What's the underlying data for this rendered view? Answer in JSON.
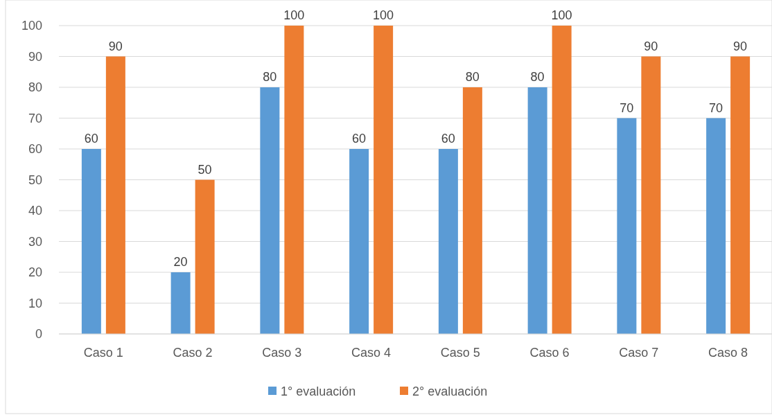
{
  "chart_data": {
    "type": "bar",
    "categories": [
      "Caso 1",
      "Caso 2",
      "Caso 3",
      "Caso 4",
      "Caso 5",
      "Caso 6",
      "Caso 7",
      "Caso 8"
    ],
    "series": [
      {
        "name": "1° evaluación",
        "color": "#5b9bd5",
        "values": [
          60,
          20,
          80,
          60,
          60,
          80,
          70,
          70
        ]
      },
      {
        "name": "2° evaluación",
        "color": "#ed7d31",
        "values": [
          90,
          50,
          100,
          100,
          80,
          100,
          90,
          90
        ]
      }
    ],
    "ylim": [
      0,
      100
    ],
    "yticks": [
      0,
      10,
      20,
      30,
      40,
      50,
      60,
      70,
      80,
      90,
      100
    ],
    "grid": "y",
    "legend": "bottom",
    "data_labels": true
  }
}
